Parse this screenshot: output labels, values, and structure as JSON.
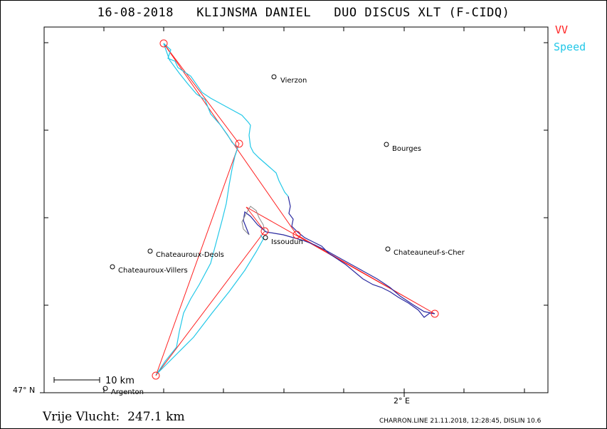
{
  "header": {
    "title": "16-08-2018   KLIJNSMA DANIEL   DUO DISCUS XLT (F-CIDQ)"
  },
  "legend": {
    "vv_label": "VV",
    "speed_label": "Speed",
    "vv_color": "#ff2020",
    "speed_color": "#22c8e8",
    "climb_color": "#2a2aa0",
    "circle_color": "#888888"
  },
  "axes": {
    "lat_label": "47° N",
    "lon_label": "2° E"
  },
  "scale_bar": {
    "label": "10 km"
  },
  "towns": [
    {
      "name": "Vierzon"
    },
    {
      "name": "Bourges"
    },
    {
      "name": "Chateauroux-Deols"
    },
    {
      "name": "Chateauroux-Villers"
    },
    {
      "name": "Issoudun"
    },
    {
      "name": "Chateauneuf-s-Cher"
    },
    {
      "name": "Argenton"
    }
  ],
  "summary": {
    "distance_text": "Vrije Vlucht:  247.1 km"
  },
  "footer": {
    "text": "CHARRON.LINE 21.11.2018, 12:28:45, DISLIN 10.6"
  }
}
